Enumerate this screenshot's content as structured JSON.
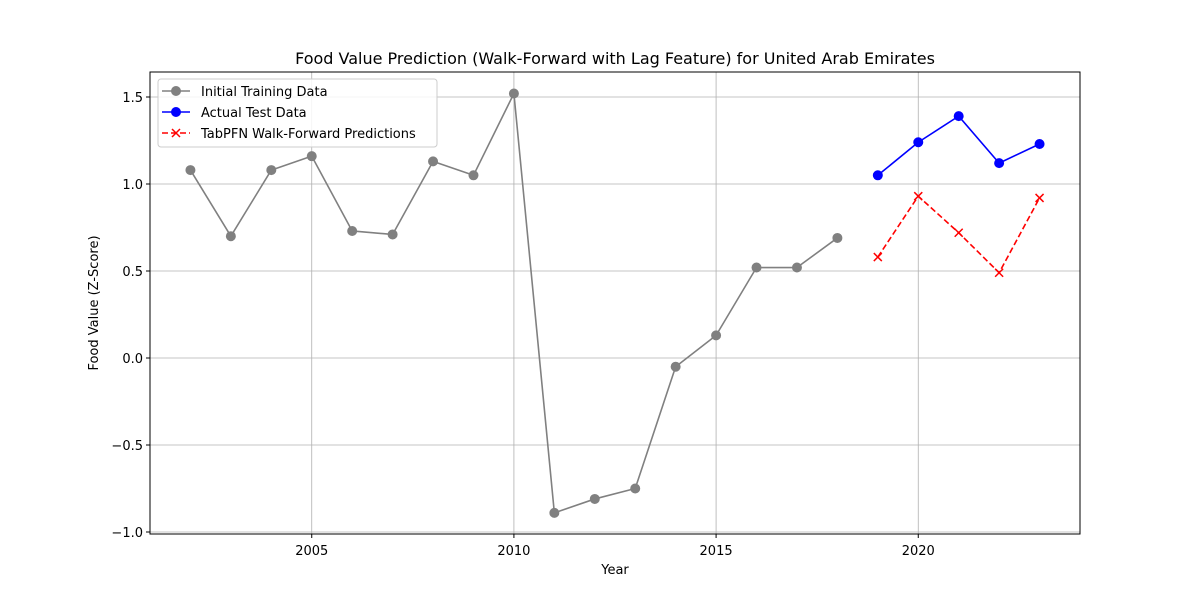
{
  "chart_data": {
    "type": "line",
    "title": "Food Value Prediction (Walk-Forward with Lag Feature) for United Arab Emirates",
    "xlabel": "Year",
    "ylabel": "Food Value (Z-Score)",
    "xlim": [
      2001,
      2024
    ],
    "ylim": [
      -1.0,
      1.65
    ],
    "x_ticks": [
      2005,
      2010,
      2015,
      2020
    ],
    "y_ticks": [
      -1.0,
      -0.5,
      0.0,
      0.5,
      1.0,
      1.5
    ],
    "x_tick_labels": [
      "2005",
      "2010",
      "2015",
      "2020"
    ],
    "y_tick_labels": [
      "−1.0",
      "−0.5",
      "0.0",
      "0.5",
      "1.0",
      "1.5"
    ],
    "grid": true,
    "legend_position": "top-left",
    "series": [
      {
        "name": "Initial Training Data",
        "color": "#808080",
        "linestyle": "solid",
        "marker": "circle",
        "x": [
          2002,
          2003,
          2004,
          2005,
          2006,
          2007,
          2008,
          2009,
          2010,
          2011,
          2012,
          2013,
          2014,
          2015,
          2016,
          2017,
          2018
        ],
        "y": [
          1.08,
          0.7,
          1.08,
          1.16,
          0.73,
          0.71,
          1.13,
          1.05,
          1.52,
          -0.89,
          -0.81,
          -0.75,
          -0.05,
          0.13,
          0.52,
          0.52,
          0.69
        ]
      },
      {
        "name": "Actual Test Data",
        "color": "#0000ff",
        "linestyle": "solid",
        "marker": "circle",
        "x": [
          2019,
          2020,
          2021,
          2022,
          2023
        ],
        "y": [
          1.05,
          1.24,
          1.39,
          1.12,
          1.23
        ]
      },
      {
        "name": "TabPFN Walk-Forward Predictions",
        "color": "#ff0000",
        "linestyle": "dashed",
        "marker": "x",
        "x": [
          2019,
          2020,
          2021,
          2022,
          2023
        ],
        "y": [
          0.58,
          0.93,
          0.72,
          0.49,
          0.92
        ]
      }
    ]
  }
}
